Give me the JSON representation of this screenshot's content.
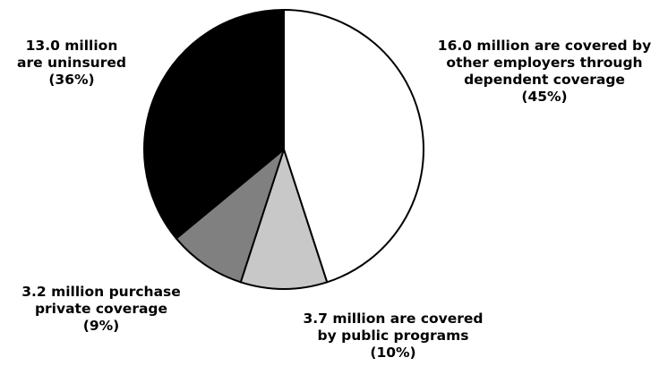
{
  "chart_data": {
    "type": "pie",
    "start_angle_deg": 0,
    "direction": "clockwise",
    "slices": [
      {
        "value": 45,
        "color": "#ffffff",
        "label_lines": [
          "16.0 million are covered by",
          "other employers through",
          "dependent coverage",
          "(45%)"
        ]
      },
      {
        "value": 10,
        "color": "#c8c8c8",
        "label_lines": [
          "3.7 million are covered",
          "by public programs",
          "(10%)"
        ]
      },
      {
        "value": 9,
        "color": "#808080",
        "label_lines": [
          "3.2 million purchase",
          "private coverage",
          "(9%)"
        ]
      },
      {
        "value": 36,
        "color": "#000000",
        "label_lines": [
          "13.0 million",
          "are uninsured",
          "(36%)"
        ]
      }
    ]
  }
}
